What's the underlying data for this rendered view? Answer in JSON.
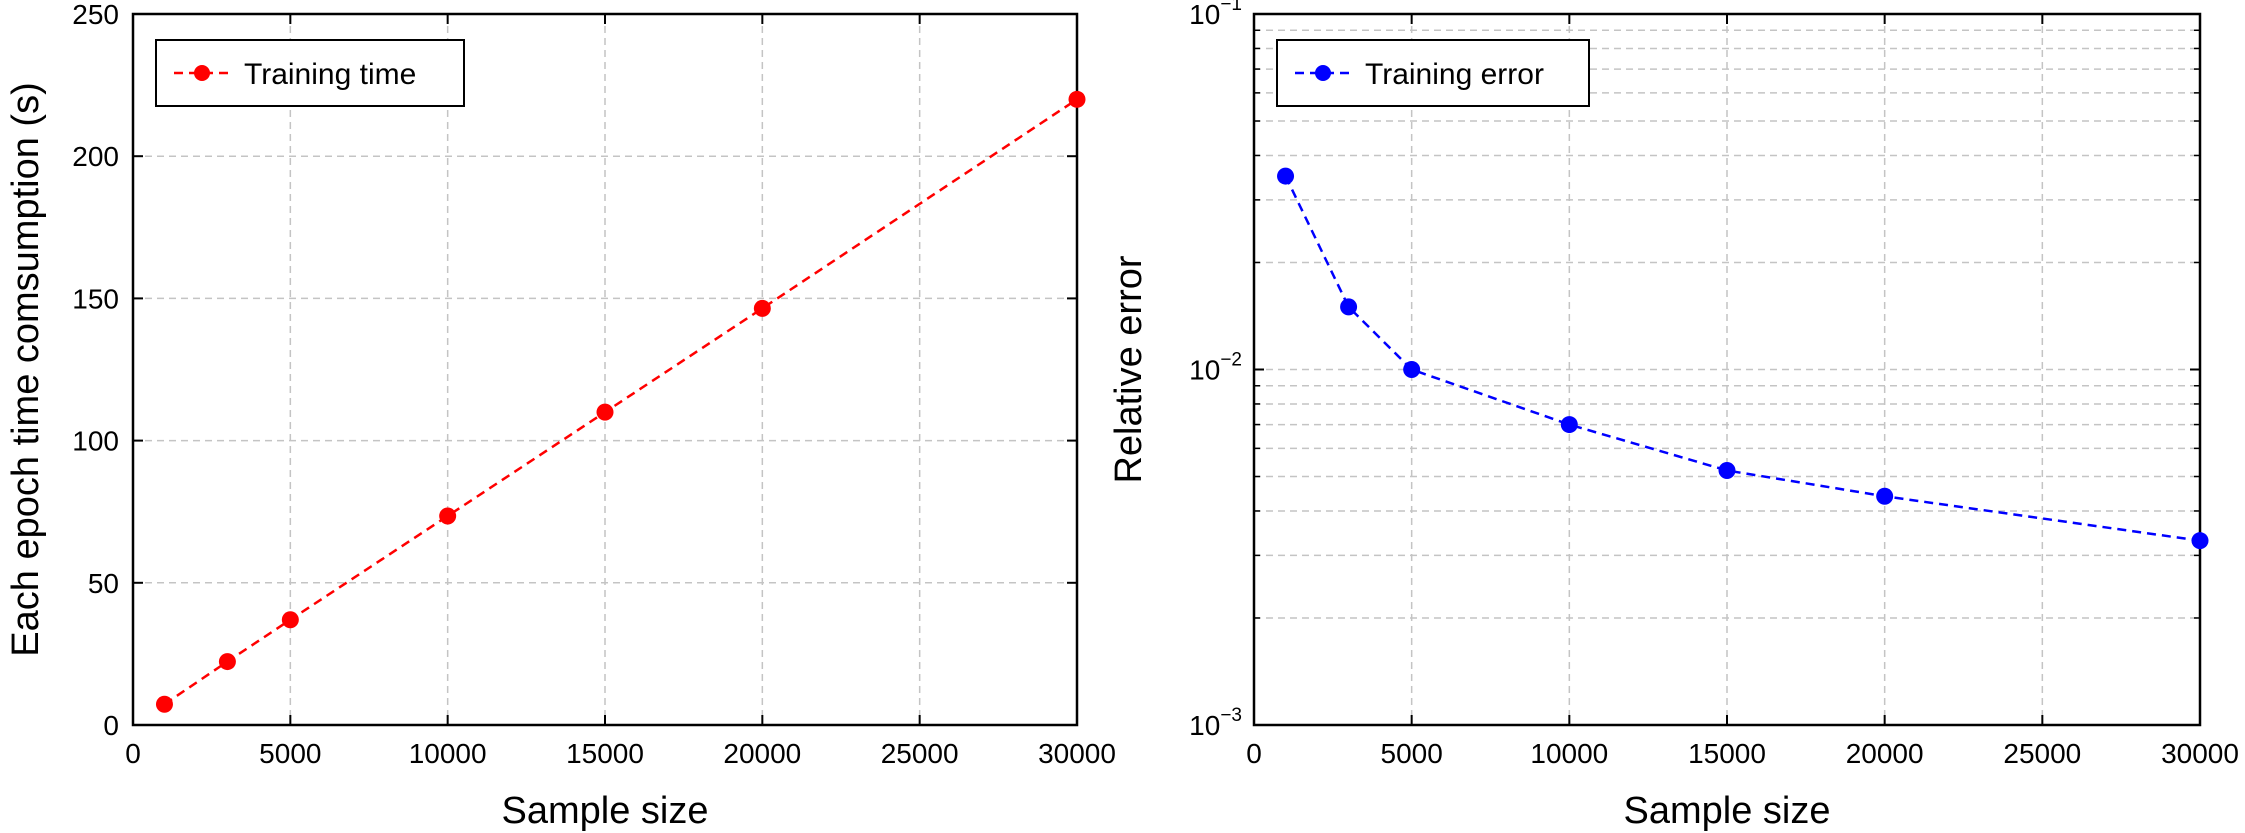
{
  "chart_data": [
    {
      "type": "line",
      "xlabel": "Sample size",
      "ylabel": "Each epoch time comsumption (s)",
      "xlim": [
        0,
        30000
      ],
      "ylim": [
        0,
        250
      ],
      "x_ticks": [
        0,
        5000,
        10000,
        15000,
        20000,
        25000,
        30000
      ],
      "x_tick_labels": [
        "0",
        "5000",
        "10000",
        "15000",
        "20000",
        "25000",
        "30000"
      ],
      "y_ticks": [
        0,
        50,
        100,
        150,
        200,
        250
      ],
      "y_tick_labels": [
        "0",
        "50",
        "100",
        "150",
        "200",
        "250"
      ],
      "y_scale": "linear",
      "grid": true,
      "legend_position": "top-left",
      "series": [
        {
          "name": "Training time",
          "color": "#ff0000",
          "line_style": "dashed",
          "marker": "circle",
          "x": [
            1000,
            3000,
            5000,
            10000,
            15000,
            20000,
            30000
          ],
          "y": [
            7.3,
            22.3,
            37,
            73.5,
            110,
            146.5,
            220
          ]
        }
      ]
    },
    {
      "type": "line",
      "xlabel": "Sample size",
      "ylabel": "Relative error",
      "xlim": [
        0,
        30000
      ],
      "ylim": [
        0.001,
        0.1
      ],
      "x_ticks": [
        0,
        5000,
        10000,
        15000,
        20000,
        25000,
        30000
      ],
      "x_tick_labels": [
        "0",
        "5000",
        "10000",
        "15000",
        "20000",
        "25000",
        "30000"
      ],
      "y_ticks": [
        0.001,
        0.01,
        0.1
      ],
      "y_tick_labels": [
        {
          "base": "10",
          "exp": "−3"
        },
        {
          "base": "10",
          "exp": "−2"
        },
        {
          "base": "10",
          "exp": "−1"
        }
      ],
      "y_scale": "log",
      "grid": true,
      "legend_position": "top-left",
      "series": [
        {
          "name": "Training error",
          "color": "#0000ff",
          "line_style": "dashed",
          "marker": "circle",
          "x": [
            1000,
            3000,
            5000,
            10000,
            15000,
            20000,
            30000
          ],
          "y": [
            0.035,
            0.015,
            0.01,
            0.007,
            0.0052,
            0.0044,
            0.0033
          ]
        }
      ]
    }
  ]
}
